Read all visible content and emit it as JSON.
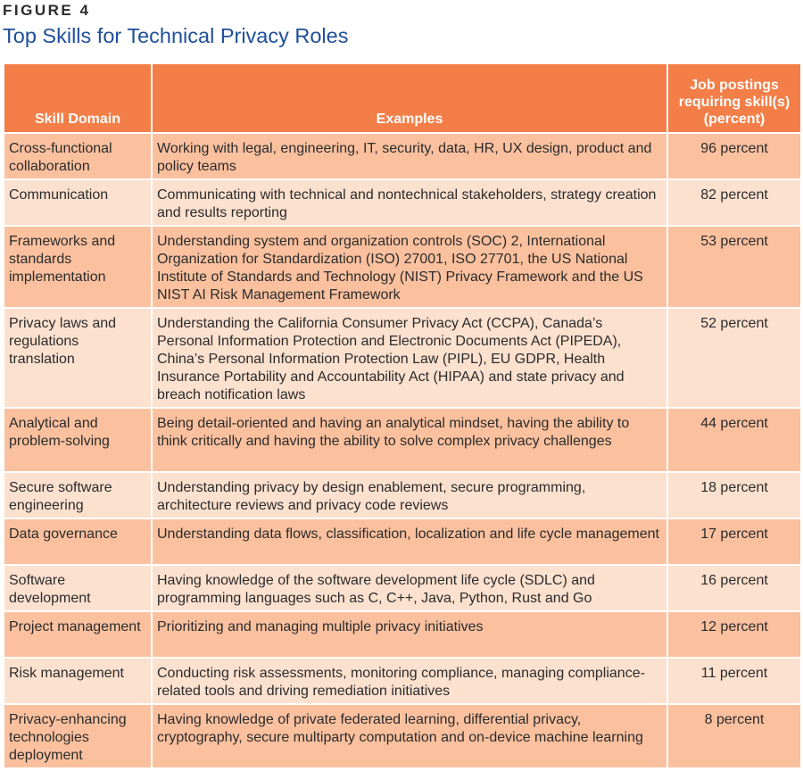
{
  "figure_label": "FIGURE 4",
  "title": "Top Skills for Technical Privacy Roles",
  "columns": {
    "domain": "Skill Domain",
    "examples": "Examples",
    "percent": "Job postings requiring skill(s) (percent)"
  },
  "rows": [
    {
      "domain": "Cross-functional collaboration",
      "examples": "Working with legal, engineering, IT, security, data, HR, UX design, product and policy teams",
      "percent": "96 percent"
    },
    {
      "domain": "Communication",
      "examples": "Communicating with technical and nontechnical stakeholders, strategy creation and results reporting",
      "percent": "82 percent"
    },
    {
      "domain": "Frameworks and standards implementation",
      "examples": "Understanding system and organization controls (SOC) 2, International Organization for Standardization (ISO) 27001, ISO 27701, the US National Institute of Standards and Technology (NIST) Privacy Framework and the US NIST AI Risk Management Framework",
      "percent": "53 percent"
    },
    {
      "domain": "Privacy laws and regulations translation",
      "examples": "Understanding the California Consumer Privacy Act (CCPA), Canada’s Personal Information Protection and Electronic Documents Act (PIPEDA), China’s Personal Information Protection Law (PIPL), EU GDPR, Health Insurance Portability and Accountability Act (HIPAA) and state privacy and breach notification laws",
      "percent": "52 percent"
    },
    {
      "domain": "Analytical and problem-solving",
      "examples": "Being detail-oriented and having an analytical mindset, having the ability to think critically and having the ability to solve complex privacy challenges",
      "percent": "44 percent"
    },
    {
      "domain": "Secure software engineering",
      "examples": "Understanding privacy by design enablement, secure programming, architecture reviews and privacy code reviews",
      "percent": "18 percent"
    },
    {
      "domain": "Data governance",
      "examples": "Understanding data flows, classification, localization and life cycle management",
      "percent": "17 percent"
    },
    {
      "domain": "Software development",
      "examples": "Having knowledge of the software development life cycle (SDLC) and programming languages such as C, C++, Java, Python, Rust and Go",
      "percent": "16 percent"
    },
    {
      "domain": "Project management",
      "examples": "Prioritizing and managing multiple privacy initiatives",
      "percent": "12 percent"
    },
    {
      "domain": "Risk management",
      "examples": "Conducting risk assessments, monitoring compliance, managing compliance-related tools and driving remediation initiatives",
      "percent": "11 percent"
    },
    {
      "domain": "Privacy-enhancing technologies deployment",
      "examples": "Having knowledge of private federated learning, differential privacy, cryptography, secure multiparty computation and on-device machine learning",
      "percent": "8 percent"
    }
  ]
}
